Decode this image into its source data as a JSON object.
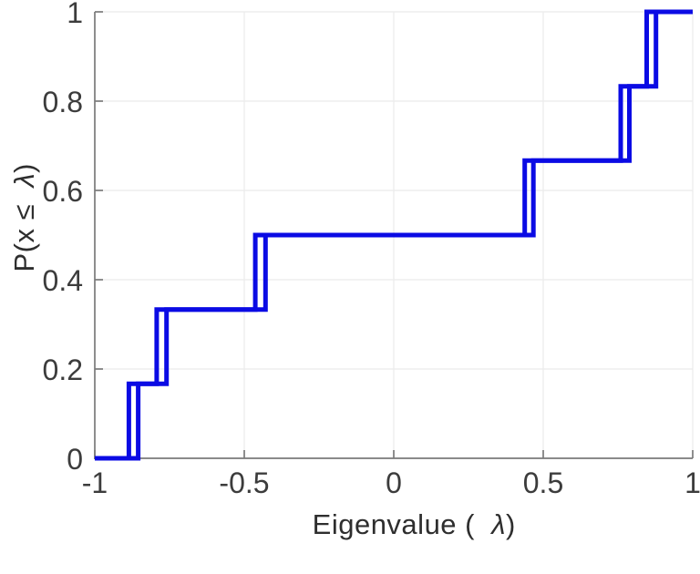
{
  "figure": {
    "background": "#ffffff",
    "title": ""
  },
  "chart_data": {
    "type": "line",
    "subtype": "empirical-cdf-step",
    "title": "",
    "xlabel": "Eigenvalue (  λ)",
    "ylabel": "P(x ≤  λ)",
    "xlim": [
      -1,
      1
    ],
    "ylim": [
      0,
      1
    ],
    "x_ticks": [
      -1,
      -0.5,
      0,
      0.5,
      1
    ],
    "x_tick_labels": [
      "-1",
      "-0.5",
      "0",
      "0.5",
      "1"
    ],
    "y_ticks": [
      0,
      0.2,
      0.4,
      0.6,
      0.8,
      1
    ],
    "y_tick_labels": [
      "0",
      "0.2",
      "0.4",
      "0.6",
      "0.8",
      "1"
    ],
    "grid": true,
    "legend": false,
    "cdf_levels": [
      0,
      0.1667,
      0.3333,
      0.5,
      0.6667,
      0.8333,
      1
    ],
    "series": [
      {
        "name": "ecdf-curve-1",
        "color": "#0b0be4",
        "eigenvalues": [
          -0.886,
          -0.793,
          -0.463,
          0.438,
          0.759,
          0.846
        ]
      },
      {
        "name": "ecdf-curve-2",
        "color": "#0b0be4",
        "eigenvalues": [
          -0.855,
          -0.76,
          -0.429,
          0.467,
          0.788,
          0.877
        ]
      }
    ]
  },
  "labels": {
    "xlabel_prefix": "Eigenvalue (  ",
    "xlabel_symbol": "λ",
    "xlabel_suffix": ")",
    "ylabel_prefix": "P(x ≤  ",
    "ylabel_symbol": "λ",
    "ylabel_suffix": ")"
  },
  "colors": {
    "line_blue": "#0b0be4",
    "axis_spine": "#7a7a7a",
    "grid_line": "#ebebeb",
    "tick_label": "#3c3c3c",
    "axis_label": "#2e2e2e"
  }
}
